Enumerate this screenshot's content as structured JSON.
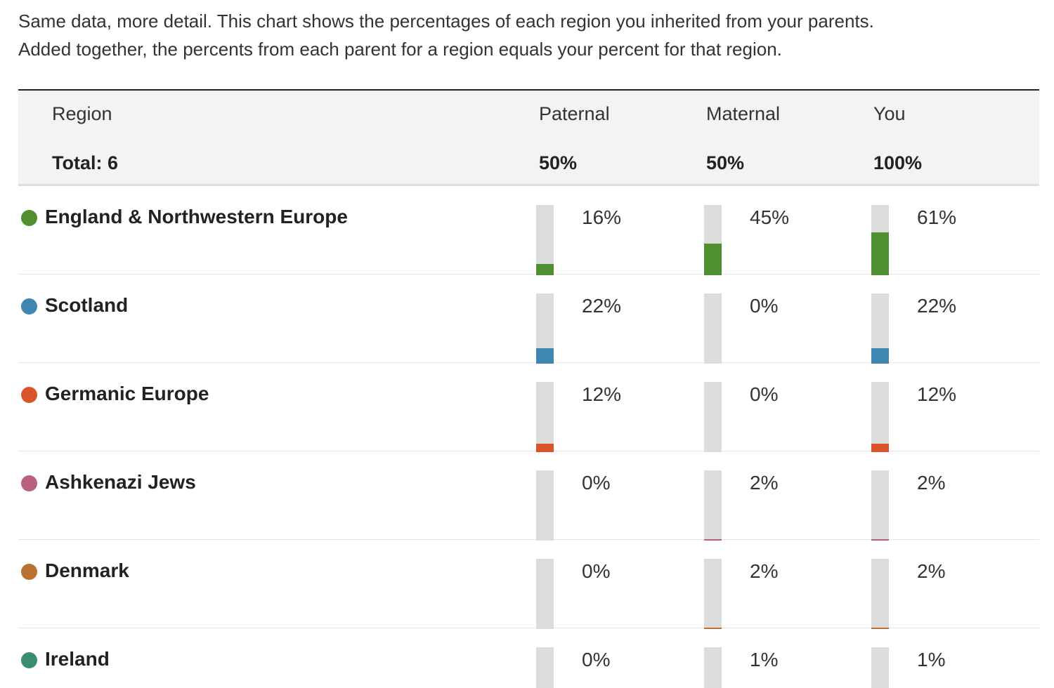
{
  "intro": {
    "line1": "Same data, more detail. This chart shows the percentages of each region you inherited from your parents.",
    "line2": "Added together, the percents from each parent for a region equals your percent for that region."
  },
  "header": {
    "region_label": "Region",
    "paternal_label": "Paternal",
    "maternal_label": "Maternal",
    "you_label": "You",
    "total_label": "Total: 6",
    "paternal_total": "50%",
    "maternal_total": "50%",
    "you_total": "100%"
  },
  "rows": [
    {
      "name": "England & Northwestern Europe",
      "color": "#4f8f2f",
      "paternal": 16,
      "maternal": 45,
      "you": 61,
      "paternal_text": "16%",
      "maternal_text": "45%",
      "you_text": "61%"
    },
    {
      "name": "Scotland",
      "color": "#3f86b0",
      "paternal": 22,
      "maternal": 0,
      "you": 22,
      "paternal_text": "22%",
      "maternal_text": "0%",
      "you_text": "22%"
    },
    {
      "name": "Germanic Europe",
      "color": "#d9532b",
      "paternal": 12,
      "maternal": 0,
      "you": 12,
      "paternal_text": "12%",
      "maternal_text": "0%",
      "you_text": "12%"
    },
    {
      "name": "Ashkenazi Jews",
      "color": "#b9607d",
      "paternal": 0,
      "maternal": 2,
      "you": 2,
      "paternal_text": "0%",
      "maternal_text": "2%",
      "you_text": "2%"
    },
    {
      "name": "Denmark",
      "color": "#b8712f",
      "paternal": 0,
      "maternal": 2,
      "you": 2,
      "paternal_text": "0%",
      "maternal_text": "2%",
      "you_text": "2%"
    },
    {
      "name": "Ireland",
      "color": "#3a8c72",
      "paternal": 0,
      "maternal": 1,
      "you": 1,
      "paternal_text": "0%",
      "maternal_text": "1%",
      "you_text": "1%"
    }
  ],
  "chart_data": {
    "type": "bar",
    "categories": [
      "England & Northwestern Europe",
      "Scotland",
      "Germanic Europe",
      "Ashkenazi Jews",
      "Denmark",
      "Ireland"
    ],
    "series": [
      {
        "name": "Paternal",
        "values": [
          16,
          22,
          12,
          0,
          0,
          0
        ]
      },
      {
        "name": "Maternal",
        "values": [
          45,
          0,
          0,
          2,
          2,
          1
        ]
      },
      {
        "name": "You",
        "values": [
          61,
          22,
          12,
          2,
          2,
          1
        ]
      }
    ],
    "ylim": [
      0,
      100
    ],
    "colors": [
      "#4f8f2f",
      "#3f86b0",
      "#d9532b",
      "#b9607d",
      "#b8712f",
      "#3a8c72"
    ]
  }
}
